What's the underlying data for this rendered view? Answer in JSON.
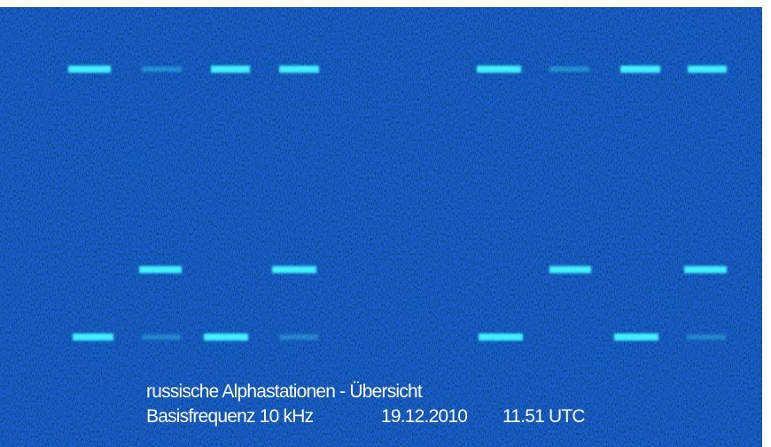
{
  "caption": {
    "title": "russische Alphastationen - Übersicht",
    "frequency": "Basisfrequenz 10 kHz",
    "date": "19.12.2010",
    "time": "11.51 UTC"
  }
}
